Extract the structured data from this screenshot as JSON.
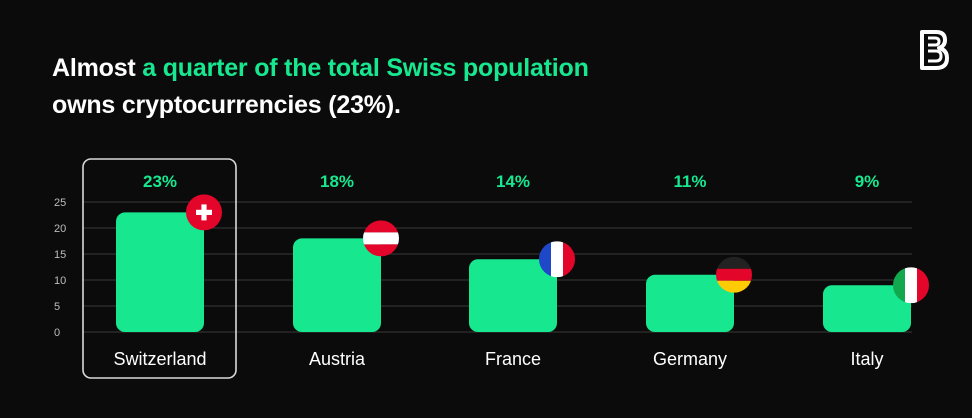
{
  "headline": {
    "part1": "Almost ",
    "accent": "a quarter of the total Swiss population",
    "line2": "owns cryptocurrencies (23%)."
  },
  "brand": {
    "logo_icon": "bitpanda-b-logo-icon"
  },
  "colors": {
    "background": "#0b0b0b",
    "accent": "#17e890",
    "text": "#ffffff",
    "axis_text": "#bdbdbd",
    "grid": "#3a3a3a",
    "highlight_border": "#d9d9d9"
  },
  "chart_data": {
    "type": "bar",
    "categories": [
      "Switzerland",
      "Austria",
      "France",
      "Germany",
      "Italy"
    ],
    "values": [
      23,
      18,
      14,
      11,
      9
    ],
    "value_labels": [
      "23%",
      "18%",
      "14%",
      "11%",
      "9%"
    ],
    "flags": [
      "switzerland-flag-icon",
      "austria-flag-icon",
      "france-flag-icon",
      "germany-flag-icon",
      "italy-flag-icon"
    ],
    "highlighted": "Switzerland",
    "yticks": [
      0,
      5,
      10,
      15,
      20,
      25
    ],
    "ylim": [
      0,
      25
    ],
    "grid": true,
    "legend": "none"
  }
}
